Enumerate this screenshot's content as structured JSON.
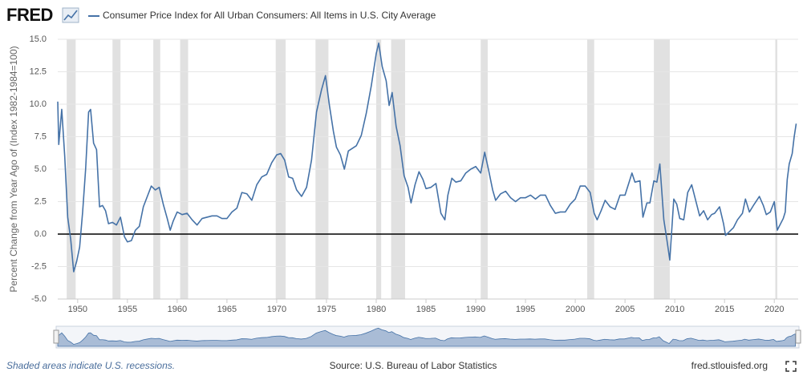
{
  "logo": "FRED",
  "chart_data": {
    "type": "line",
    "y_label": "Percent Change from Year Ago of (Index 1982-1984=100)",
    "series": [
      {
        "name": "Consumer Price Index for All Urban Consumers: All Items in U.S. City Average",
        "color": "#4572a7",
        "x": [
          1948.0,
          1948.1,
          1948.4,
          1948.7,
          1949.0,
          1949.3,
          1949.6,
          1949.9,
          1950.2,
          1950.5,
          1950.8,
          1951.1,
          1951.3,
          1951.6,
          1951.9,
          1952.2,
          1952.5,
          1952.8,
          1953.1,
          1953.5,
          1953.9,
          1954.3,
          1954.7,
          1955.0,
          1955.4,
          1955.8,
          1956.2,
          1956.6,
          1957.0,
          1957.4,
          1957.8,
          1958.2,
          1958.6,
          1959.0,
          1959.3,
          1959.6,
          1960.0,
          1960.5,
          1961.0,
          1961.5,
          1962.0,
          1962.5,
          1963.0,
          1963.5,
          1964.0,
          1964.5,
          1965.0,
          1965.5,
          1966.0,
          1966.5,
          1967.0,
          1967.5,
          1968.0,
          1968.5,
          1969.0,
          1969.5,
          1970.0,
          1970.4,
          1970.8,
          1971.2,
          1971.6,
          1972.0,
          1972.5,
          1973.0,
          1973.5,
          1974.0,
          1974.5,
          1974.9,
          1975.3,
          1975.7,
          1976.0,
          1976.4,
          1976.8,
          1977.2,
          1977.6,
          1978.0,
          1978.5,
          1979.0,
          1979.5,
          1980.0,
          1980.25,
          1980.6,
          1981.0,
          1981.3,
          1981.6,
          1982.0,
          1982.4,
          1982.8,
          1983.2,
          1983.5,
          1983.9,
          1984.3,
          1984.7,
          1985.0,
          1985.5,
          1986.0,
          1986.5,
          1986.9,
          1987.2,
          1987.6,
          1988.0,
          1988.5,
          1989.0,
          1989.5,
          1990.0,
          1990.5,
          1990.9,
          1991.3,
          1991.7,
          1992.0,
          1992.5,
          1993.0,
          1993.5,
          1994.0,
          1994.5,
          1995.0,
          1995.5,
          1996.0,
          1996.5,
          1997.0,
          1997.5,
          1998.0,
          1998.5,
          1999.0,
          1999.5,
          2000.0,
          2000.5,
          2001.0,
          2001.5,
          2001.9,
          2002.2,
          2002.6,
          2003.0,
          2003.5,
          2004.0,
          2004.5,
          2005.0,
          2005.7,
          2006.0,
          2006.5,
          2006.8,
          2007.2,
          2007.5,
          2007.9,
          2008.2,
          2008.5,
          2008.9,
          2009.2,
          2009.5,
          2009.9,
          2010.2,
          2010.5,
          2010.9,
          2011.3,
          2011.7,
          2012.0,
          2012.5,
          2012.9,
          2013.3,
          2013.7,
          2014.0,
          2014.5,
          2014.9,
          2015.1,
          2015.5,
          2015.9,
          2016.3,
          2016.8,
          2017.1,
          2017.5,
          2017.9,
          2018.5,
          2018.9,
          2019.2,
          2019.6,
          2020.0,
          2020.3,
          2020.5,
          2020.9,
          2021.1,
          2021.3,
          2021.5,
          2021.8,
          2022.0,
          2022.2
        ],
        "values": [
          10.2,
          6.9,
          9.6,
          6.0,
          1.3,
          -0.4,
          -2.9,
          -2.1,
          -1.0,
          1.7,
          5.0,
          9.4,
          9.6,
          7.0,
          6.5,
          2.1,
          2.2,
          1.8,
          0.8,
          0.9,
          0.7,
          1.3,
          -0.2,
          -0.6,
          -0.5,
          0.3,
          0.6,
          2.1,
          2.9,
          3.7,
          3.4,
          3.6,
          2.3,
          1.2,
          0.3,
          1.0,
          1.7,
          1.5,
          1.6,
          1.1,
          0.7,
          1.2,
          1.3,
          1.4,
          1.4,
          1.2,
          1.2,
          1.7,
          2.0,
          3.2,
          3.1,
          2.6,
          3.8,
          4.4,
          4.6,
          5.5,
          6.1,
          6.2,
          5.7,
          4.4,
          4.3,
          3.4,
          2.9,
          3.6,
          5.7,
          9.4,
          11.1,
          12.2,
          9.9,
          7.9,
          6.7,
          6.1,
          5.0,
          6.4,
          6.6,
          6.8,
          7.6,
          9.3,
          11.4,
          13.9,
          14.7,
          12.9,
          11.8,
          9.9,
          10.9,
          8.3,
          6.8,
          4.5,
          3.6,
          2.4,
          3.8,
          4.8,
          4.2,
          3.5,
          3.6,
          3.9,
          1.6,
          1.1,
          3.0,
          4.3,
          4.0,
          4.1,
          4.7,
          5.0,
          5.2,
          4.7,
          6.3,
          4.9,
          3.4,
          2.6,
          3.1,
          3.3,
          2.8,
          2.5,
          2.8,
          2.8,
          3.0,
          2.7,
          3.0,
          3.0,
          2.2,
          1.6,
          1.7,
          1.7,
          2.3,
          2.7,
          3.7,
          3.7,
          3.2,
          1.6,
          1.1,
          1.8,
          2.6,
          2.1,
          1.9,
          3.0,
          3.0,
          4.7,
          4.0,
          4.1,
          1.3,
          2.4,
          2.4,
          4.1,
          4.0,
          5.4,
          1.1,
          -0.4,
          -2.0,
          2.7,
          2.3,
          1.2,
          1.1,
          3.2,
          3.8,
          2.9,
          1.4,
          1.8,
          1.1,
          1.5,
          1.6,
          2.1,
          0.8,
          -0.1,
          0.2,
          0.5,
          1.1,
          1.6,
          2.7,
          1.7,
          2.2,
          2.9,
          2.2,
          1.5,
          1.7,
          2.5,
          0.3,
          0.6,
          1.2,
          1.7,
          4.2,
          5.4,
          6.2,
          7.5,
          8.5
        ]
      }
    ],
    "recessions": [
      [
        1948.9,
        1949.8
      ],
      [
        1953.5,
        1954.3
      ],
      [
        1957.6,
        1958.3
      ],
      [
        1960.3,
        1961.1
      ],
      [
        1969.9,
        1970.9
      ],
      [
        1973.9,
        1975.2
      ],
      [
        1980.0,
        1980.5
      ],
      [
        1981.5,
        1982.9
      ],
      [
        1990.5,
        1991.2
      ],
      [
        2001.2,
        2001.9
      ],
      [
        2007.9,
        2009.5
      ],
      [
        2020.1,
        2020.3
      ]
    ],
    "xlim": [
      1948,
      2022.4
    ],
    "xticks": [
      1950,
      1955,
      1960,
      1965,
      1970,
      1975,
      1980,
      1985,
      1990,
      1995,
      2000,
      2005,
      2010,
      2015,
      2020
    ],
    "ylim": [
      -5,
      15
    ],
    "yticks": [
      {
        "value": -5,
        "label": "-5.0"
      },
      -2.5,
      {
        "value": 0,
        "label": "0.0"
      },
      2.5,
      {
        "value": 5,
        "label": "5.0"
      },
      7.5,
      {
        "value": 10,
        "label": "10.0"
      },
      12.5,
      {
        "value": 15,
        "label": "15.0"
      }
    ],
    "zero_line": true,
    "recession_note": "Shaded areas indicate U.S. recessions.",
    "source": "Source: U.S. Bureau of Labor Statistics",
    "site": "fred.stlouisfed.org"
  }
}
